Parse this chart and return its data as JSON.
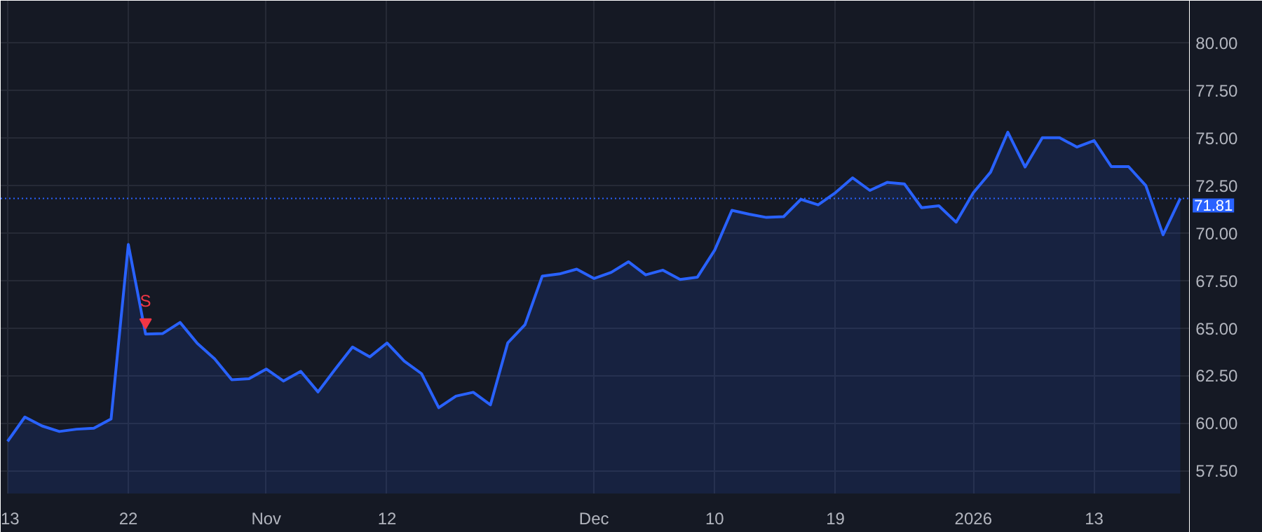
{
  "chart_data": {
    "type": "area",
    "categories": [
      "13",
      null,
      null,
      null,
      null,
      null,
      null,
      "22",
      null,
      null,
      null,
      null,
      null,
      null,
      null,
      "Nov",
      null,
      null,
      null,
      null,
      null,
      null,
      "12",
      null,
      null,
      null,
      null,
      null,
      null,
      null,
      null,
      null,
      null,
      null,
      "Dec",
      null,
      null,
      null,
      null,
      null,
      null,
      "10",
      null,
      null,
      null,
      null,
      null,
      null,
      "19",
      null,
      null,
      null,
      null,
      null,
      null,
      null,
      "2026",
      null,
      null,
      null,
      null,
      null,
      null,
      "13",
      null,
      null,
      null,
      null,
      null
    ],
    "series": [
      {
        "color": "#2962ff",
        "values": [
          59.04,
          60.32,
          59.85,
          59.56,
          59.68,
          59.73,
          60.22,
          69.39,
          64.68,
          64.71,
          65.29,
          64.19,
          63.38,
          62.28,
          62.33,
          62.84,
          62.21,
          62.72,
          61.64,
          62.84,
          64.0,
          63.48,
          64.21,
          63.26,
          62.6,
          60.81,
          61.42,
          61.62,
          60.96,
          64.21,
          65.17,
          67.72,
          67.84,
          68.09,
          67.6,
          67.92,
          68.48,
          67.79,
          68.04,
          67.55,
          67.67,
          69.09,
          71.18,
          70.98,
          70.81,
          70.85,
          71.76,
          71.47,
          72.11,
          72.89,
          72.23,
          72.65,
          72.57,
          71.32,
          71.42,
          70.56,
          72.11,
          73.19,
          75.29,
          73.46,
          75.0,
          75.0,
          74.51,
          74.85,
          73.48,
          73.48,
          72.48,
          69.9,
          71.81
        ]
      },
      {
        "type": "scatter",
        "color": "#f23645",
        "marker": "triangle",
        "values": [
          null,
          null,
          null,
          null,
          null,
          null,
          null,
          null,
          65.3,
          null,
          null,
          null,
          null,
          null,
          null,
          null,
          null,
          null,
          null,
          null,
          null,
          null,
          null,
          null,
          null,
          null,
          null,
          null,
          null,
          null,
          null,
          null,
          null,
          null,
          null,
          null,
          null,
          null,
          null,
          null,
          null,
          null,
          null,
          null,
          null,
          null,
          null,
          null,
          null,
          null,
          null,
          null,
          null,
          null,
          null,
          null,
          null,
          null,
          null,
          null,
          null,
          null,
          null,
          null,
          null,
          null,
          null,
          null,
          null
        ]
      }
    ],
    "annotations": [
      "S"
    ],
    "ylim": [
      56.3,
      82.2
    ],
    "yticks": [
      {
        "value": 57.5,
        "label": "57.50"
      },
      {
        "value": 60,
        "label": "60.00"
      },
      {
        "value": 62.5,
        "label": "62.50"
      },
      {
        "value": 65,
        "label": "65.00"
      },
      {
        "value": 67.5,
        "label": "67.50"
      },
      {
        "value": 70,
        "label": "70.00"
      },
      {
        "value": 72.5,
        "label": "72.50"
      },
      {
        "value": 75,
        "label": "75.00"
      },
      {
        "value": 77.5,
        "label": "77.50"
      },
      {
        "value": 80,
        "label": "80.00"
      }
    ],
    "ref_lines": [
      {
        "axis": "y",
        "value": 71.81,
        "label": "71.81",
        "color": "#2962ff",
        "line_style": "dotted"
      }
    ],
    "grid": true
  }
}
